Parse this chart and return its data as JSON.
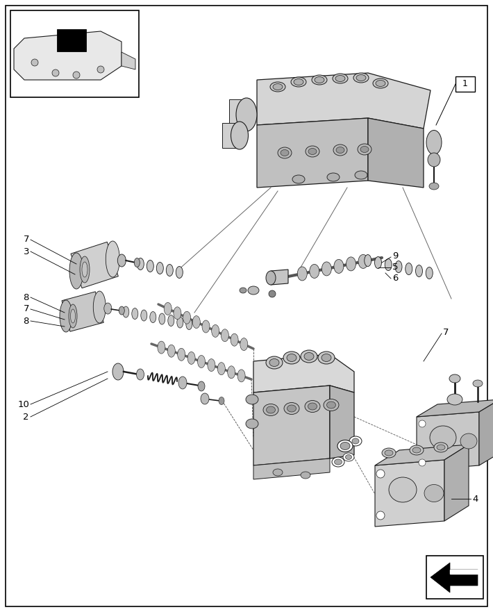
{
  "fig_width": 7.1,
  "fig_height": 8.81,
  "dpi": 100,
  "bg": "#ffffff",
  "lc": "#1a1a1a",
  "fc_light": "#e0e0e0",
  "fc_mid": "#c8c8c8",
  "fc_dark": "#aaaaaa"
}
